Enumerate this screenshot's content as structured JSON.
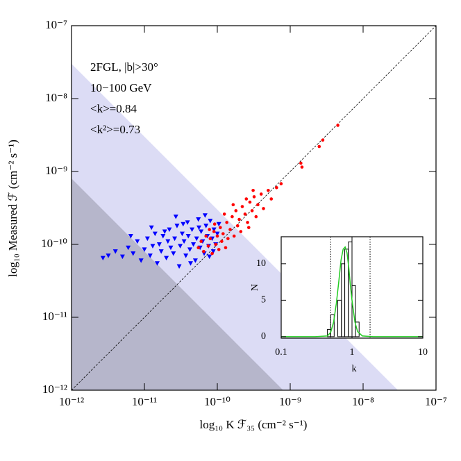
{
  "chart_data": [
    {
      "type": "scatter",
      "xlabel": "log₁₀ K ℱ₃₅ (cm⁻² s⁻¹)",
      "ylabel": "log₁₀ Measured ℱ (cm⁻² s⁻¹)",
      "xscale": "log",
      "yscale": "log",
      "xlim": [
        1e-12,
        1e-07
      ],
      "ylim": [
        1e-12,
        1e-07
      ],
      "xticks": [
        {
          "value": 1e-12,
          "label": "10⁻¹²"
        },
        {
          "value": 1e-11,
          "label": "10⁻¹¹"
        },
        {
          "value": 1e-10,
          "label": "10⁻¹⁰"
        },
        {
          "value": 1e-09,
          "label": "10⁻⁹"
        },
        {
          "value": 1e-08,
          "label": "10⁻⁸"
        },
        {
          "value": 1e-07,
          "label": "10⁻⁷"
        }
      ],
      "yticks": [
        {
          "value": 1e-12,
          "label": "10⁻¹²"
        },
        {
          "value": 1e-11,
          "label": "10⁻¹¹"
        },
        {
          "value": 1e-10,
          "label": "10⁻¹⁰"
        },
        {
          "value": 1e-09,
          "label": "10⁻⁹"
        },
        {
          "value": 1e-08,
          "label": "10⁻⁸"
        },
        {
          "value": 1e-07,
          "label": "10⁻⁷"
        }
      ],
      "annotations": [
        "2FGL, |b|>30°",
        "10−100 GeV",
        "<k>=0.84",
        "<k²>=0.73"
      ],
      "diagonal": true,
      "bands": [
        {
          "color": "#dcdcf5",
          "level": 3e-08
        },
        {
          "color": "#b6b6cb",
          "level": 8e-10
        }
      ],
      "series": [
        {
          "color": "#0000ff",
          "marker": "triangle-down",
          "x": [
            2.7e-12,
            3.2e-12,
            4e-12,
            5e-12,
            6e-12,
            7e-12,
            8e-12,
            9e-12,
            1e-11,
            1.1e-11,
            1.2e-11,
            1.3e-11,
            1.4e-11,
            1.5e-11,
            1.6e-11,
            1.7e-11,
            1.8e-11,
            2e-11,
            2.1e-11,
            2.2e-11,
            2.3e-11,
            2.5e-11,
            2.6e-11,
            2.8e-11,
            3e-11,
            3.1e-11,
            3.3e-11,
            3.5e-11,
            3.7e-11,
            3.9e-11,
            4e-11,
            4.2e-11,
            4.5e-11,
            4.7e-11,
            5e-11,
            5.2e-11,
            5.5e-11,
            5.8e-11,
            6e-11,
            6.3e-11,
            6.6e-11,
            7e-11,
            7.3e-11,
            7.6e-11,
            8e-11,
            8.5e-11,
            9e-11,
            9.5e-11,
            1e-10,
            1.05e-10,
            6.5e-12,
            1.25e-11,
            2.7e-11,
            4.3e-11,
            3.4e-11,
            1.9e-11,
            5.6e-11,
            7.8e-11,
            8.8e-11,
            6.8e-11
          ],
          "y": [
            6.5e-11,
            7e-11,
            8e-11,
            6.8e-11,
            9e-11,
            7.5e-11,
            1.1e-10,
            6e-11,
            8.5e-11,
            1.2e-10,
            7e-11,
            9.5e-11,
            1.4e-10,
            5.5e-11,
            1e-10,
            8e-11,
            1.3e-10,
            6.5e-11,
            1.1e-10,
            1.6e-10,
            9e-11,
            7.5e-11,
            1.2e-10,
            1.8e-10,
            5e-11,
            9.5e-11,
            1.4e-10,
            1.1e-10,
            7e-11,
            2e-10,
            1.3e-10,
            8.5e-11,
            1.6e-10,
            1e-10,
            6e-11,
            1.2e-10,
            2.2e-10,
            9e-11,
            1.5e-10,
            1.1e-10,
            7.5e-11,
            1.8e-10,
            1.3e-10,
            9.5e-11,
            2.1e-10,
            1.2e-10,
            1.6e-10,
            1e-10,
            1.4e-10,
            1.9e-10,
            1.3e-10,
            1.7e-10,
            2.4e-10,
            5.5e-11,
            1.9e-10,
            1.5e-10,
            1.7e-10,
            6.8e-11,
            8e-11,
            2.5e-10
          ]
        },
        {
          "color": "#ff0000",
          "marker": "circle",
          "x": [
            5.5e-11,
            6e-11,
            6.5e-11,
            7e-11,
            7.5e-11,
            8e-11,
            8.5e-11,
            9e-11,
            9.5e-11,
            1e-10,
            1.05e-10,
            1.1e-10,
            1.15e-10,
            1.2e-10,
            1.3e-10,
            1.35e-10,
            1.4e-10,
            1.5e-10,
            1.6e-10,
            1.7e-10,
            1.8e-10,
            1.9e-10,
            2e-10,
            2.1e-10,
            2.2e-10,
            2.4e-10,
            2.6e-10,
            2.8e-10,
            3e-10,
            3.2e-10,
            3.4e-10,
            3.6e-10,
            4e-10,
            4.3e-10,
            5e-10,
            5.5e-10,
            6.5e-10,
            7.5e-10,
            1.4e-09,
            1.45e-09,
            2.5e-09,
            2.8e-09,
            4.5e-09,
            9.2e-11,
            1.25e-10,
            2.5e-10,
            3.1e-10,
            1.65e-10,
            7.8e-11,
            2.7e-10
          ],
          "y": [
            9e-11,
            1.1e-10,
            8e-11,
            1.3e-10,
            9.5e-11,
            1.2e-10,
            7.5e-11,
            1.5e-10,
            1e-10,
            1.3e-10,
            8.5e-11,
            1.7e-10,
            1.1e-10,
            1.4e-10,
            9e-11,
            2e-10,
            1.2e-10,
            1.6e-10,
            2.4e-10,
            1.3e-10,
            2.9e-10,
            1.8e-10,
            2.2e-10,
            1.5e-10,
            3.3e-10,
            2.6e-10,
            2e-10,
            3.8e-10,
            2.9e-10,
            4.5e-10,
            2.4e-10,
            3.5e-10,
            4.9e-10,
            3.1e-10,
            5.5e-10,
            4.2e-10,
            6e-10,
            6.8e-10,
            1.3e-09,
            1.15e-09,
            2.2e-09,
            2.7e-09,
            4.3e-09,
            1.9e-10,
            2.6e-10,
            4.2e-10,
            5.5e-10,
            3.5e-10,
            1.6e-10,
            1.7e-10
          ]
        }
      ]
    },
    {
      "type": "histogram",
      "xlabel": "k",
      "ylabel": "N",
      "xscale": "log",
      "xlim": [
        0.1,
        10
      ],
      "xticks": [
        0.1,
        1,
        10
      ],
      "ylim": [
        -0.2,
        13.7
      ],
      "yticks": [
        0,
        5,
        10
      ],
      "bins": [
        0.45,
        0.5,
        0.56,
        0.63,
        0.71,
        0.79,
        0.89,
        1.0,
        1.12,
        1.26
      ],
      "counts": [
        1,
        3,
        0,
        5,
        10,
        12,
        13,
        7,
        2
      ],
      "color": "#000000",
      "vlines": [
        0.5,
        1.8
      ],
      "curve": {
        "color": "#22cc22",
        "x": [
          0.1,
          0.3,
          0.45,
          0.5,
          0.55,
          0.6,
          0.65,
          0.7,
          0.75,
          0.8,
          0.85,
          0.9,
          0.95,
          1.0,
          1.1,
          1.2,
          1.4,
          2,
          5,
          10
        ],
        "y": [
          0,
          0,
          0.1,
          0.6,
          2,
          4.5,
          7.5,
          10.5,
          12,
          12.3,
          11.5,
          9.5,
          7,
          5,
          2,
          0.7,
          0.1,
          0,
          0,
          0
        ]
      }
    }
  ]
}
